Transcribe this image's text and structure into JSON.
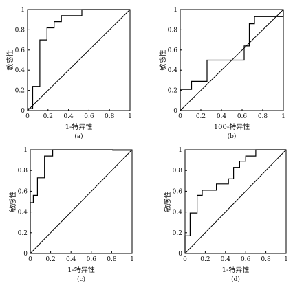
{
  "chart_data": [
    {
      "id": "a",
      "type": "line",
      "panel_label": "(a)",
      "title": "",
      "xlabel": "1-特异性",
      "ylabel": "敏感性",
      "xlim": [
        0,
        1
      ],
      "ylim": [
        0,
        1
      ],
      "xticks": [
        "0",
        "0.2",
        "0.4",
        "0.6",
        "0.8",
        "1"
      ],
      "yticks": [
        "0",
        "0.2",
        "0.4",
        "0.6",
        "0.8",
        "1"
      ],
      "grid": false,
      "series": [
        {
          "values": [
            [
              0,
              0
            ],
            [
              0,
              0.02
            ],
            [
              0.05,
              0.02
            ],
            [
              0.05,
              0.24
            ],
            [
              0.12,
              0.24
            ],
            [
              0.12,
              0.7
            ],
            [
              0.19,
              0.7
            ],
            [
              0.19,
              0.82
            ],
            [
              0.26,
              0.82
            ],
            [
              0.26,
              0.88
            ],
            [
              0.33,
              0.88
            ],
            [
              0.33,
              0.94
            ],
            [
              0.53,
              0.94
            ],
            [
              0.53,
              1.0
            ],
            [
              1,
              1
            ]
          ]
        },
        {
          "values": [
            [
              0,
              0
            ],
            [
              1,
              1
            ]
          ]
        }
      ]
    },
    {
      "id": "b",
      "type": "line",
      "panel_label": "(b)",
      "title": "",
      "xlabel": "100-特异性",
      "ylabel": "敏感性",
      "xlim": [
        0,
        1
      ],
      "ylim": [
        0,
        1
      ],
      "xticks": [
        "0",
        "0.2",
        "0.4",
        "0.6",
        "0.8",
        "1"
      ],
      "yticks": [
        "0",
        "0.2",
        "0.4",
        "0.6",
        "0.8",
        "1"
      ],
      "grid": false,
      "series": [
        {
          "values": [
            [
              0,
              0
            ],
            [
              0,
              0.21
            ],
            [
              0.11,
              0.21
            ],
            [
              0.11,
              0.29
            ],
            [
              0.26,
              0.29
            ],
            [
              0.26,
              0.5
            ],
            [
              0.62,
              0.5
            ],
            [
              0.62,
              0.64
            ],
            [
              0.67,
              0.64
            ],
            [
              0.67,
              0.86
            ],
            [
              0.72,
              0.86
            ],
            [
              0.72,
              0.93
            ],
            [
              1,
              0.93
            ],
            [
              1,
              1
            ]
          ]
        },
        {
          "values": [
            [
              0,
              0
            ],
            [
              1,
              1
            ]
          ]
        }
      ]
    },
    {
      "id": "c",
      "type": "line",
      "panel_label": "(c)",
      "title": "",
      "xlabel": "1-特异性",
      "ylabel": "敏感性",
      "xlim": [
        0,
        1
      ],
      "ylim": [
        0,
        1
      ],
      "xticks": [
        "0",
        "0.2",
        "0.4",
        "0.6",
        "0.8",
        "1"
      ],
      "yticks": [
        "0",
        "0.2",
        "0.4",
        "0.6",
        "0.8",
        "1"
      ],
      "grid": false,
      "series": [
        {
          "values": [
            [
              0,
              0
            ],
            [
              0,
              0.49
            ],
            [
              0.03,
              0.49
            ],
            [
              0.03,
              0.56
            ],
            [
              0.07,
              0.56
            ],
            [
              0.07,
              0.73
            ],
            [
              0.14,
              0.73
            ],
            [
              0.14,
              0.94
            ],
            [
              0.22,
              0.94
            ],
            [
              0.22,
              1.0
            ],
            [
              0.81,
              1.0
            ],
            [
              0.81,
              0.995
            ],
            [
              1,
              0.995
            ]
          ]
        },
        {
          "values": [
            [
              0,
              0
            ],
            [
              1,
              1
            ]
          ]
        }
      ]
    },
    {
      "id": "d",
      "type": "line",
      "panel_label": "(d)",
      "title": "",
      "xlabel": "1-特异性",
      "ylabel": "敏感性",
      "xlim": [
        0,
        1
      ],
      "ylim": [
        0,
        1
      ],
      "xticks": [
        "0",
        "0.2",
        "0.4",
        "0.6",
        "0.8",
        "1"
      ],
      "yticks": [
        "0",
        "0.2",
        "0.4",
        "0.6",
        "0.8",
        "1"
      ],
      "grid": false,
      "series": [
        {
          "values": [
            [
              0,
              0
            ],
            [
              0,
              0.17
            ],
            [
              0.05,
              0.17
            ],
            [
              0.05,
              0.39
            ],
            [
              0.12,
              0.39
            ],
            [
              0.12,
              0.56
            ],
            [
              0.17,
              0.56
            ],
            [
              0.17,
              0.61
            ],
            [
              0.31,
              0.61
            ],
            [
              0.31,
              0.67
            ],
            [
              0.43,
              0.67
            ],
            [
              0.43,
              0.72
            ],
            [
              0.48,
              0.72
            ],
            [
              0.48,
              0.83
            ],
            [
              0.54,
              0.83
            ],
            [
              0.54,
              0.89
            ],
            [
              0.6,
              0.89
            ],
            [
              0.6,
              0.94
            ],
            [
              0.7,
              0.94
            ],
            [
              0.7,
              1.0
            ],
            [
              1,
              1
            ]
          ]
        },
        {
          "values": [
            [
              0,
              0
            ],
            [
              1,
              1
            ]
          ]
        }
      ]
    }
  ]
}
